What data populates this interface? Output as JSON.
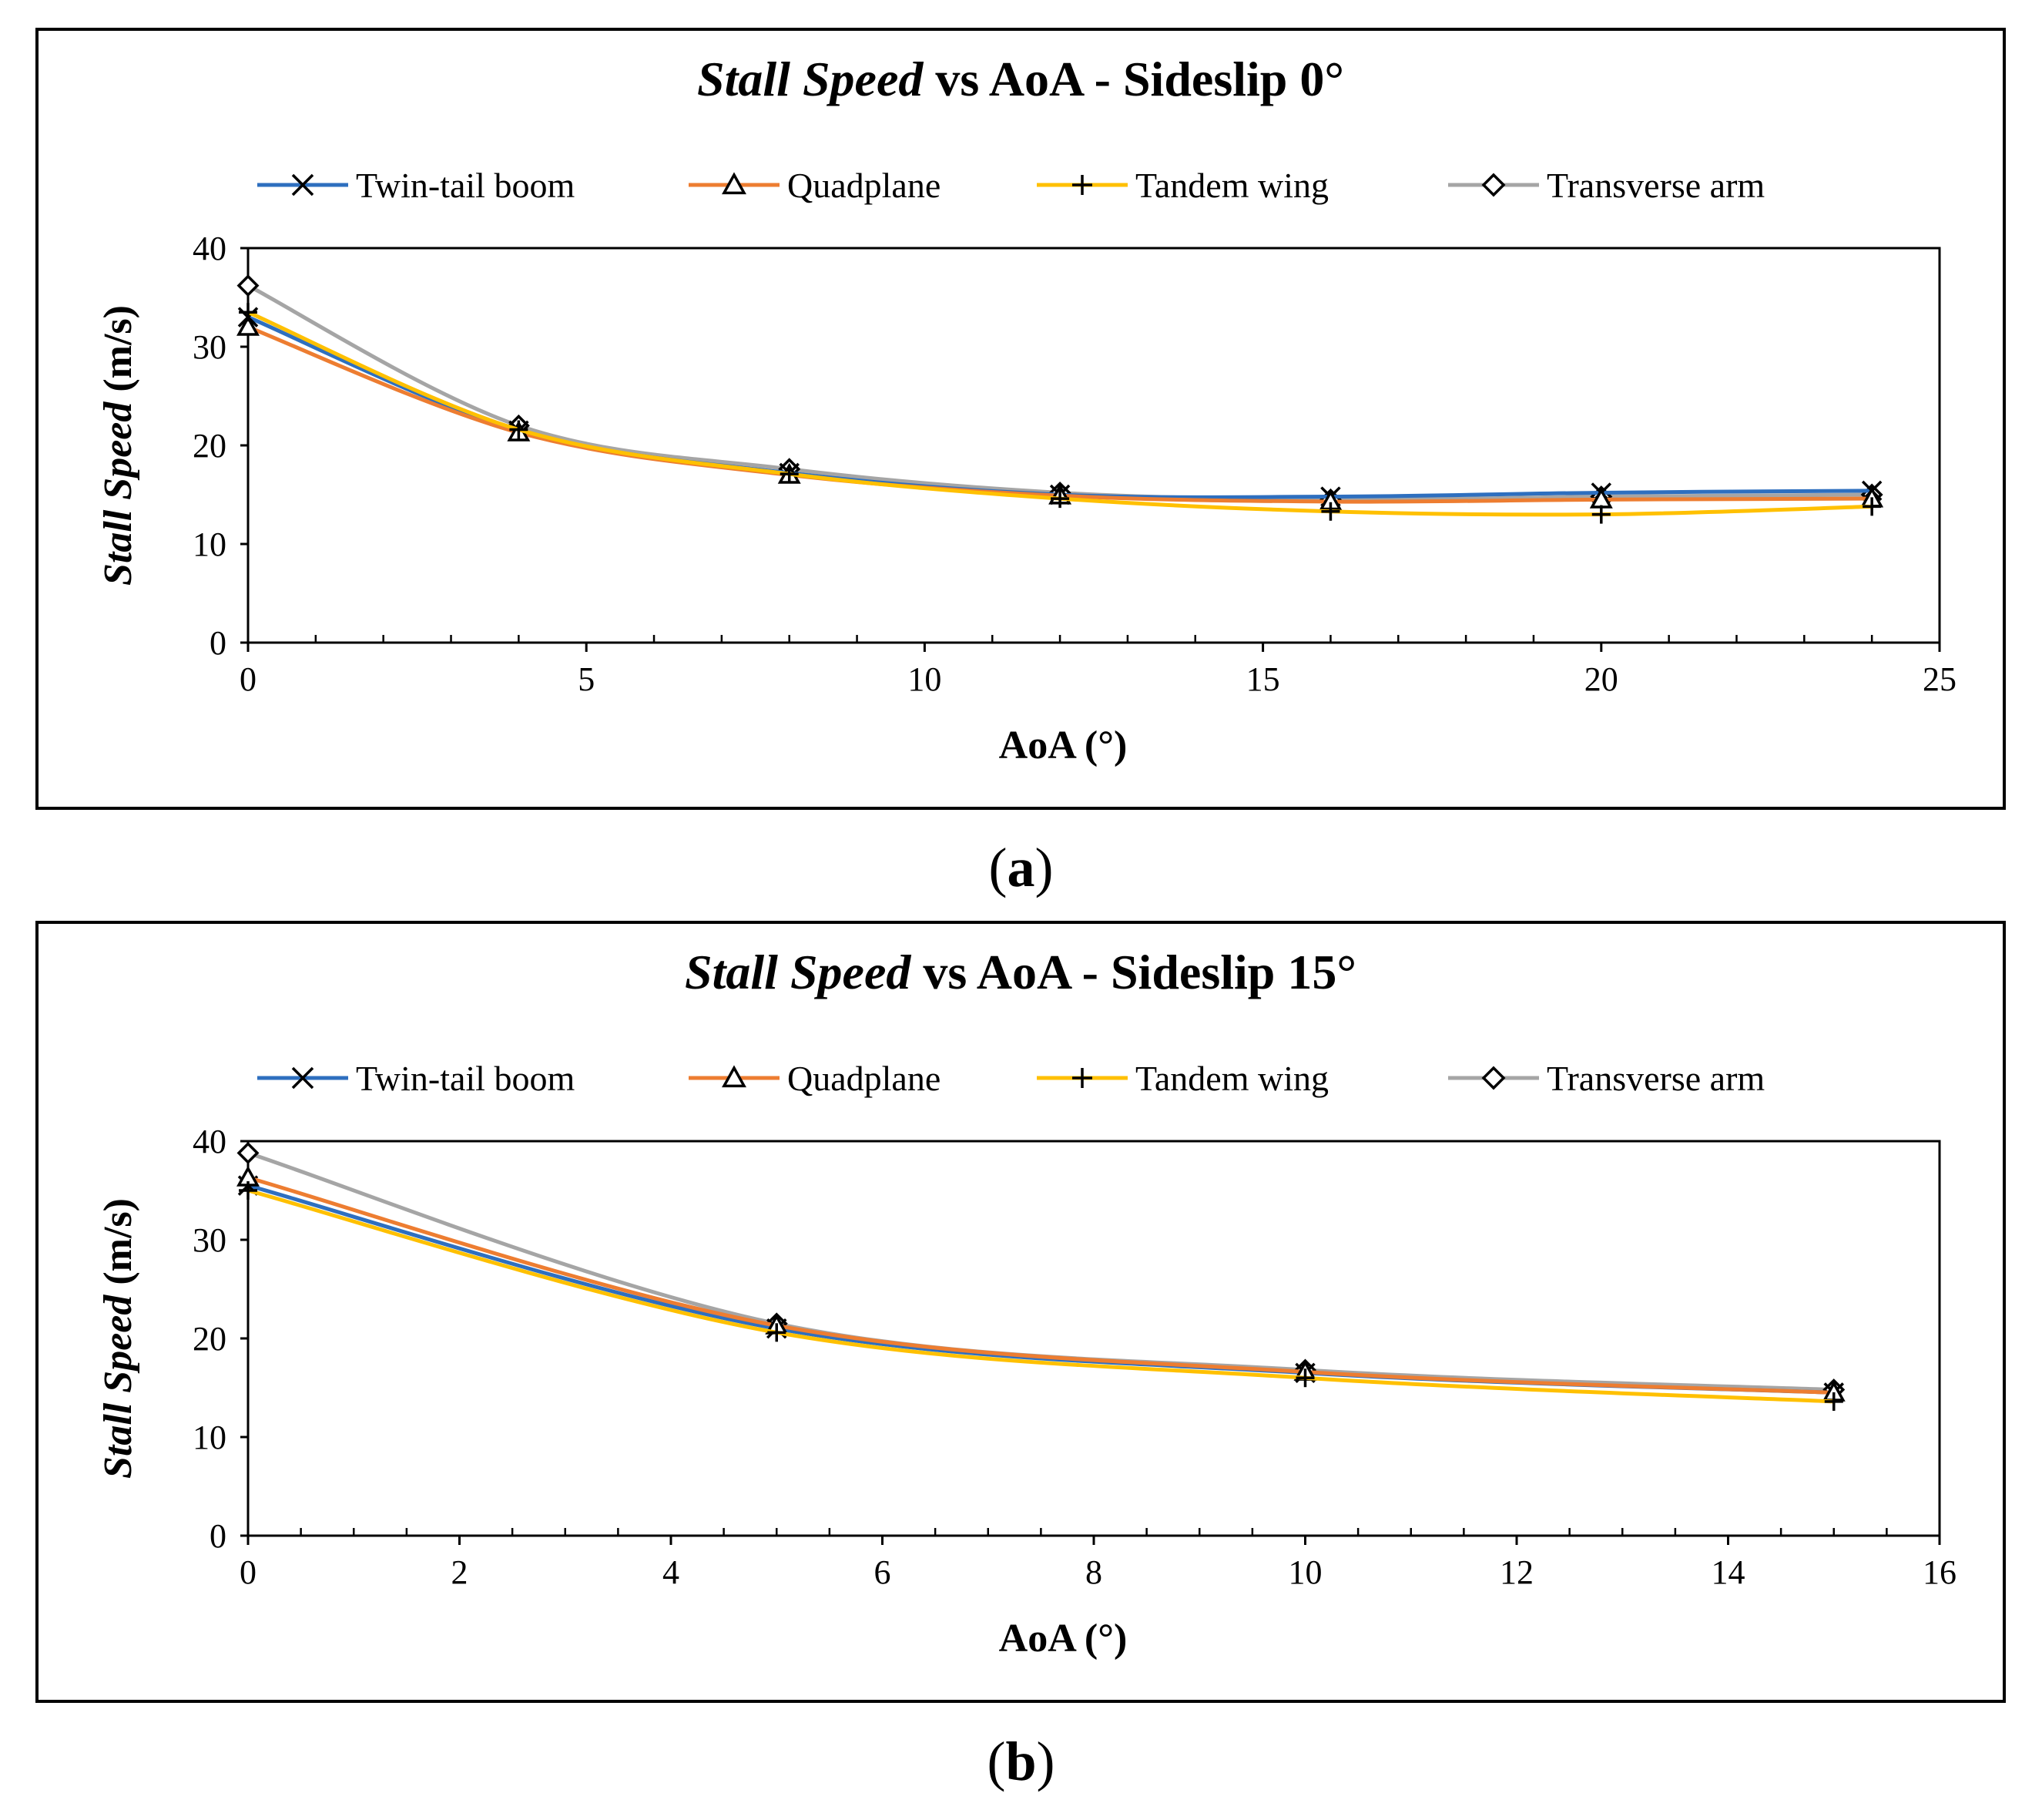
{
  "charts": [
    {
      "id": "a",
      "caption": "a",
      "title_italic": "Stall Speed",
      "title_rest": " vs AoA - Sideslip 0°",
      "ylabel_italic": "Stall Speed",
      "ylabel_rest": " (m/s)",
      "xlabel": "AoA (°)"
    },
    {
      "id": "b",
      "caption": "b",
      "title_italic": "Stall Speed",
      "title_rest": " vs AoA - Sideslip 15°",
      "ylabel_italic": "Stall Speed",
      "ylabel_rest": " (m/s)",
      "xlabel": "AoA (°)"
    }
  ],
  "legend": [
    {
      "name": "Twin-tail boom",
      "color": "#2E6FBF",
      "marker": "x"
    },
    {
      "name": "Quadplane",
      "color": "#ED7D31",
      "marker": "triangle"
    },
    {
      "name": "Tandem wing",
      "color": "#FFC000",
      "marker": "plus"
    },
    {
      "name": "Transverse arm",
      "color": "#A5A5A5",
      "marker": "diamond"
    }
  ],
  "chart_data": [
    {
      "type": "line",
      "title": "Stall Speed vs AoA - Sideslip 0°",
      "xlabel": "AoA (°)",
      "ylabel": "Stall Speed (m/s)",
      "xlim": [
        0,
        25
      ],
      "ylim": [
        0,
        40
      ],
      "xticks": [
        0,
        5,
        10,
        15,
        20,
        25
      ],
      "yticks": [
        0,
        10,
        20,
        30,
        40
      ],
      "x_minor_step": 1,
      "x": [
        0,
        4,
        8,
        12,
        16,
        20,
        24
      ],
      "series": [
        {
          "name": "Twin-tail boom",
          "values": [
            33,
            21.5,
            17.2,
            15.0,
            14.8,
            15.2,
            15.4
          ]
        },
        {
          "name": "Quadplane",
          "values": [
            32,
            21.3,
            17.0,
            14.9,
            14.3,
            14.5,
            14.6
          ]
        },
        {
          "name": "Tandem wing",
          "values": [
            33.5,
            21.6,
            17.1,
            14.6,
            13.3,
            13.0,
            13.8
          ]
        },
        {
          "name": "Transverse arm",
          "values": [
            36.2,
            22.0,
            17.6,
            15.2,
            14.5,
            14.8,
            15.0
          ]
        }
      ]
    },
    {
      "type": "line",
      "title": "Stall Speed vs AoA - Sideslip 15°",
      "xlabel": "AoA (°)",
      "ylabel": "Stall Speed (m/s)",
      "xlim": [
        0,
        16
      ],
      "ylim": [
        0,
        40
      ],
      "xticks": [
        0,
        2,
        4,
        6,
        8,
        10,
        12,
        14,
        16
      ],
      "yticks": [
        0,
        10,
        20,
        30,
        40
      ],
      "x_minor_step": 0.5,
      "x": [
        0,
        5,
        10,
        15
      ],
      "series": [
        {
          "name": "Twin-tail boom",
          "values": [
            35.5,
            21.0,
            16.5,
            14.5
          ]
        },
        {
          "name": "Quadplane",
          "values": [
            36.3,
            21.3,
            16.6,
            14.5
          ]
        },
        {
          "name": "Tandem wing",
          "values": [
            35.0,
            20.6,
            16.0,
            13.6
          ]
        },
        {
          "name": "Transverse arm",
          "values": [
            38.8,
            21.5,
            16.8,
            14.8
          ]
        }
      ]
    }
  ]
}
